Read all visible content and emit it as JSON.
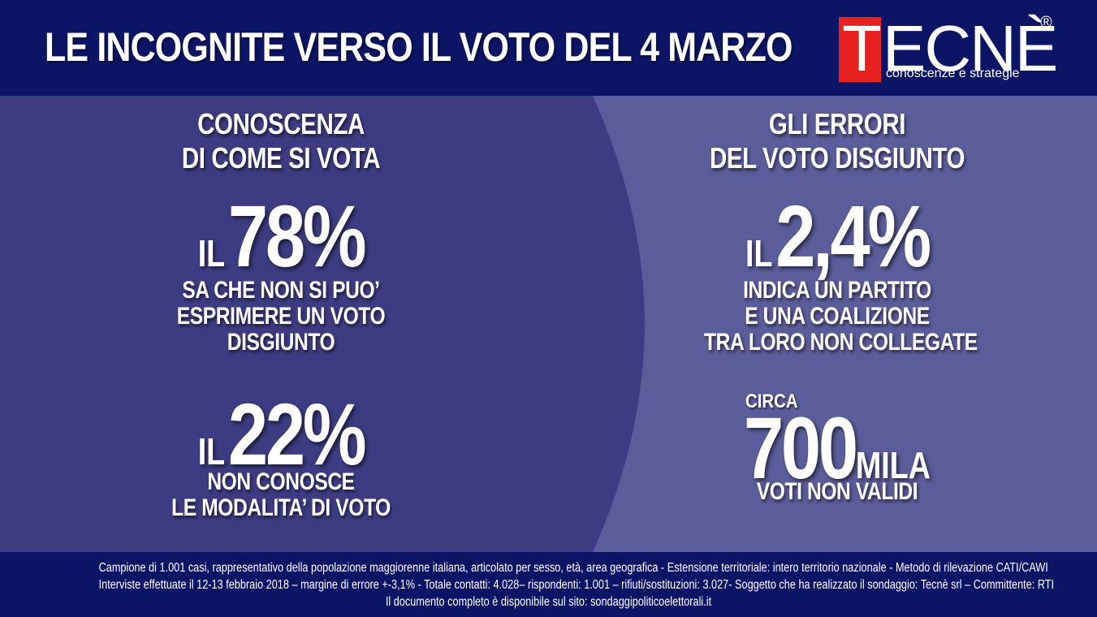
{
  "header": {
    "title": "LE INCOGNITE VERSO IL VOTO DEL 4 MARZO",
    "logo": {
      "letter_t": "T",
      "letters_rest": "ECNÈ",
      "registered": "®",
      "tagline": "conoscenze e strategie"
    }
  },
  "left_panel": {
    "heading_line1": "CONOSCENZA",
    "heading_line2": "DI COME SI VOTA",
    "stat1": {
      "prefix": "IL",
      "value": "78%",
      "line1": "SA CHE NON SI PUO’",
      "line2": "ESPRIMERE UN VOTO",
      "line3": "DISGIUNTO"
    },
    "stat2": {
      "prefix": "IL",
      "value": "22%",
      "line1": "NON CONOSCE",
      "line2": "LE MODALITA’ DI VOTO"
    }
  },
  "right_panel": {
    "heading_line1": "GLI ERRORI",
    "heading_line2": "DEL VOTO DISGIUNTO",
    "stat1": {
      "prefix": "IL",
      "value": "2,4%",
      "line1": "INDICA UN PARTITO",
      "line2": "E UNA COALIZIONE",
      "line3": "TRA LORO NON COLLEGATE"
    },
    "stat2": {
      "circa": "CIRCA",
      "value": "700",
      "unit": "MILA",
      "line1": "VOTI NON VALIDI"
    }
  },
  "footer": {
    "line1": "Campione di  1.001 casi, rappresentativo della popolazione maggiorenne italiana, articolato per sesso, età, area geografica - Estensione territoriale: intero territorio nazionale - Metodo di rilevazione CATI/CAWI",
    "line2": "Interviste effettuate il 12-13 febbraio 2018 – margine di errore +-3,1%  - Totale contatti: 4.028– rispondenti: 1.001 – rifiuti/sostituzioni: 3.027- Soggetto che ha realizzato il sondaggio: Tecnè srl – Committente: RTI",
    "line3": "Il documento completo è disponibile sul sito: sondaggipoliticoelettorali.it"
  },
  "colors": {
    "header_bg": "#0c1565",
    "left_panel_bg": "#3d3c82",
    "right_panel_bg": "#5b5c9a",
    "logo_red": "#e8221e",
    "text": "#ffffff"
  }
}
